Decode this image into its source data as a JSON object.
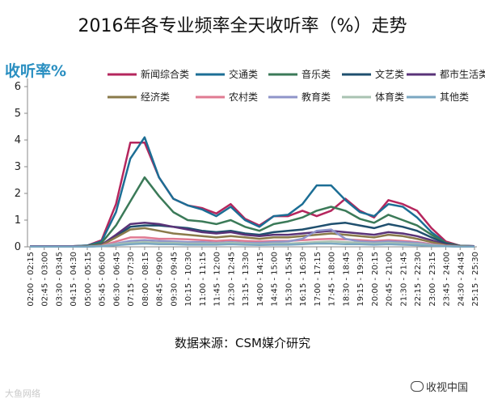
{
  "chart_data": {
    "type": "line",
    "title": "2016年各专业频率全天收听率（%）走势",
    "ylabel": "收听率%",
    "xlabel": "",
    "ylim": [
      0,
      6
    ],
    "yticks": [
      0,
      1,
      2,
      3,
      4,
      5,
      6
    ],
    "grid": false,
    "legend_position": "top",
    "source": "数据来源：CSM媒介研究",
    "x": [
      "02:00 - 02:15",
      "02:45 - 03:00",
      "03:30 - 03:45",
      "04:15 - 04:30",
      "05:00 - 05:15",
      "05:45 - 06:00",
      "06:30 - 06:45",
      "07:15 - 07:30",
      "08:00 - 08:15",
      "08:45 - 09:00",
      "09:30 - 09:45",
      "10:15 - 10:30",
      "11:00 - 11:15",
      "11:45 - 12:00",
      "12:30 - 12:45",
      "13:15 - 13:30",
      "14:00 - 14:15",
      "14:45 - 15:00",
      "15:30 - 15:45",
      "16:15 - 16:30",
      "17:00 - 17:15",
      "17:45 - 18:00",
      "18:30 - 18:45",
      "19:15 - 19:30",
      "20:00 - 20:15",
      "20:45 - 21:00",
      "21:30 - 21:45",
      "22:15 - 22:30",
      "23:00 - 23:15",
      "23:45 - 24:00",
      "24:30 - 24:45",
      "25:15 - 25:30"
    ],
    "series": [
      {
        "name": "新闻综合类",
        "color": "#b5265d",
        "values": [
          0.02,
          0.02,
          0.02,
          0.02,
          0.05,
          0.25,
          1.6,
          3.9,
          3.9,
          2.6,
          1.8,
          1.55,
          1.45,
          1.25,
          1.6,
          1.05,
          0.8,
          1.15,
          1.15,
          1.35,
          1.15,
          1.35,
          1.8,
          1.35,
          1.1,
          1.75,
          1.6,
          1.35,
          0.7,
          0.2,
          0.04,
          0.02
        ]
      },
      {
        "name": "交通类",
        "color": "#1c6e95",
        "values": [
          0.02,
          0.02,
          0.02,
          0.02,
          0.05,
          0.2,
          1.3,
          3.3,
          4.1,
          2.6,
          1.8,
          1.55,
          1.4,
          1.15,
          1.5,
          1.0,
          0.75,
          1.15,
          1.2,
          1.6,
          2.3,
          2.3,
          1.75,
          1.3,
          1.15,
          1.6,
          1.5,
          1.1,
          0.55,
          0.15,
          0.04,
          0.02
        ]
      },
      {
        "name": "音乐类",
        "color": "#3b7a58",
        "values": [
          0.02,
          0.02,
          0.02,
          0.02,
          0.03,
          0.15,
          0.8,
          1.7,
          2.6,
          1.9,
          1.3,
          1.0,
          0.95,
          0.85,
          1.0,
          0.75,
          0.6,
          0.85,
          0.95,
          1.1,
          1.35,
          1.5,
          1.35,
          1.05,
          0.9,
          1.2,
          1.0,
          0.8,
          0.45,
          0.15,
          0.04,
          0.02
        ]
      },
      {
        "name": "文艺类",
        "color": "#1f4f6e",
        "values": [
          0.02,
          0.02,
          0.02,
          0.02,
          0.02,
          0.08,
          0.4,
          0.75,
          0.8,
          0.8,
          0.75,
          0.7,
          0.6,
          0.55,
          0.6,
          0.5,
          0.45,
          0.55,
          0.6,
          0.65,
          0.75,
          0.85,
          0.9,
          0.8,
          0.7,
          0.85,
          0.75,
          0.6,
          0.35,
          0.12,
          0.03,
          0.02
        ]
      },
      {
        "name": "都市生活类",
        "color": "#5a3378",
        "values": [
          0.02,
          0.02,
          0.02,
          0.02,
          0.02,
          0.08,
          0.45,
          0.85,
          0.9,
          0.85,
          0.75,
          0.65,
          0.55,
          0.5,
          0.55,
          0.45,
          0.4,
          0.45,
          0.45,
          0.5,
          0.55,
          0.6,
          0.55,
          0.5,
          0.45,
          0.55,
          0.5,
          0.4,
          0.25,
          0.08,
          0.03,
          0.02
        ]
      },
      {
        "name": "经济类",
        "color": "#8a7a4a",
        "values": [
          0.01,
          0.01,
          0.01,
          0.01,
          0.02,
          0.06,
          0.35,
          0.65,
          0.7,
          0.6,
          0.5,
          0.45,
          0.4,
          0.35,
          0.4,
          0.35,
          0.3,
          0.35,
          0.35,
          0.4,
          0.45,
          0.5,
          0.45,
          0.4,
          0.35,
          0.45,
          0.4,
          0.3,
          0.18,
          0.06,
          0.02,
          0.01
        ]
      },
      {
        "name": "农村类",
        "color": "#e07a92",
        "values": [
          0.01,
          0.01,
          0.01,
          0.01,
          0.01,
          0.04,
          0.2,
          0.35,
          0.35,
          0.3,
          0.3,
          0.28,
          0.25,
          0.22,
          0.25,
          0.22,
          0.2,
          0.22,
          0.22,
          0.25,
          0.28,
          0.3,
          0.28,
          0.25,
          0.22,
          0.25,
          0.22,
          0.18,
          0.1,
          0.04,
          0.01,
          0.01
        ]
      },
      {
        "name": "教育类",
        "color": "#8f94c9",
        "values": [
          0.01,
          0.01,
          0.01,
          0.01,
          0.01,
          0.03,
          0.12,
          0.22,
          0.25,
          0.22,
          0.2,
          0.18,
          0.18,
          0.15,
          0.18,
          0.15,
          0.15,
          0.18,
          0.2,
          0.3,
          0.6,
          0.65,
          0.3,
          0.2,
          0.18,
          0.2,
          0.18,
          0.15,
          0.08,
          0.03,
          0.01,
          0.01
        ]
      },
      {
        "name": "体育类",
        "color": "#a9c3b2",
        "values": [
          0.01,
          0.01,
          0.01,
          0.01,
          0.01,
          0.03,
          0.1,
          0.15,
          0.18,
          0.15,
          0.15,
          0.12,
          0.12,
          0.12,
          0.15,
          0.12,
          0.1,
          0.12,
          0.12,
          0.15,
          0.18,
          0.2,
          0.18,
          0.15,
          0.12,
          0.15,
          0.12,
          0.1,
          0.06,
          0.02,
          0.01,
          0.01
        ]
      },
      {
        "name": "其他类",
        "color": "#7aa7c1",
        "values": [
          0.01,
          0.01,
          0.01,
          0.01,
          0.01,
          0.02,
          0.06,
          0.1,
          0.12,
          0.1,
          0.1,
          0.08,
          0.08,
          0.08,
          0.1,
          0.08,
          0.07,
          0.08,
          0.08,
          0.1,
          0.12,
          0.12,
          0.1,
          0.1,
          0.08,
          0.1,
          0.08,
          0.06,
          0.04,
          0.02,
          0.01,
          0.01
        ]
      }
    ]
  },
  "watermark_left": "大鱼网络",
  "watermark_right": "收视中国"
}
